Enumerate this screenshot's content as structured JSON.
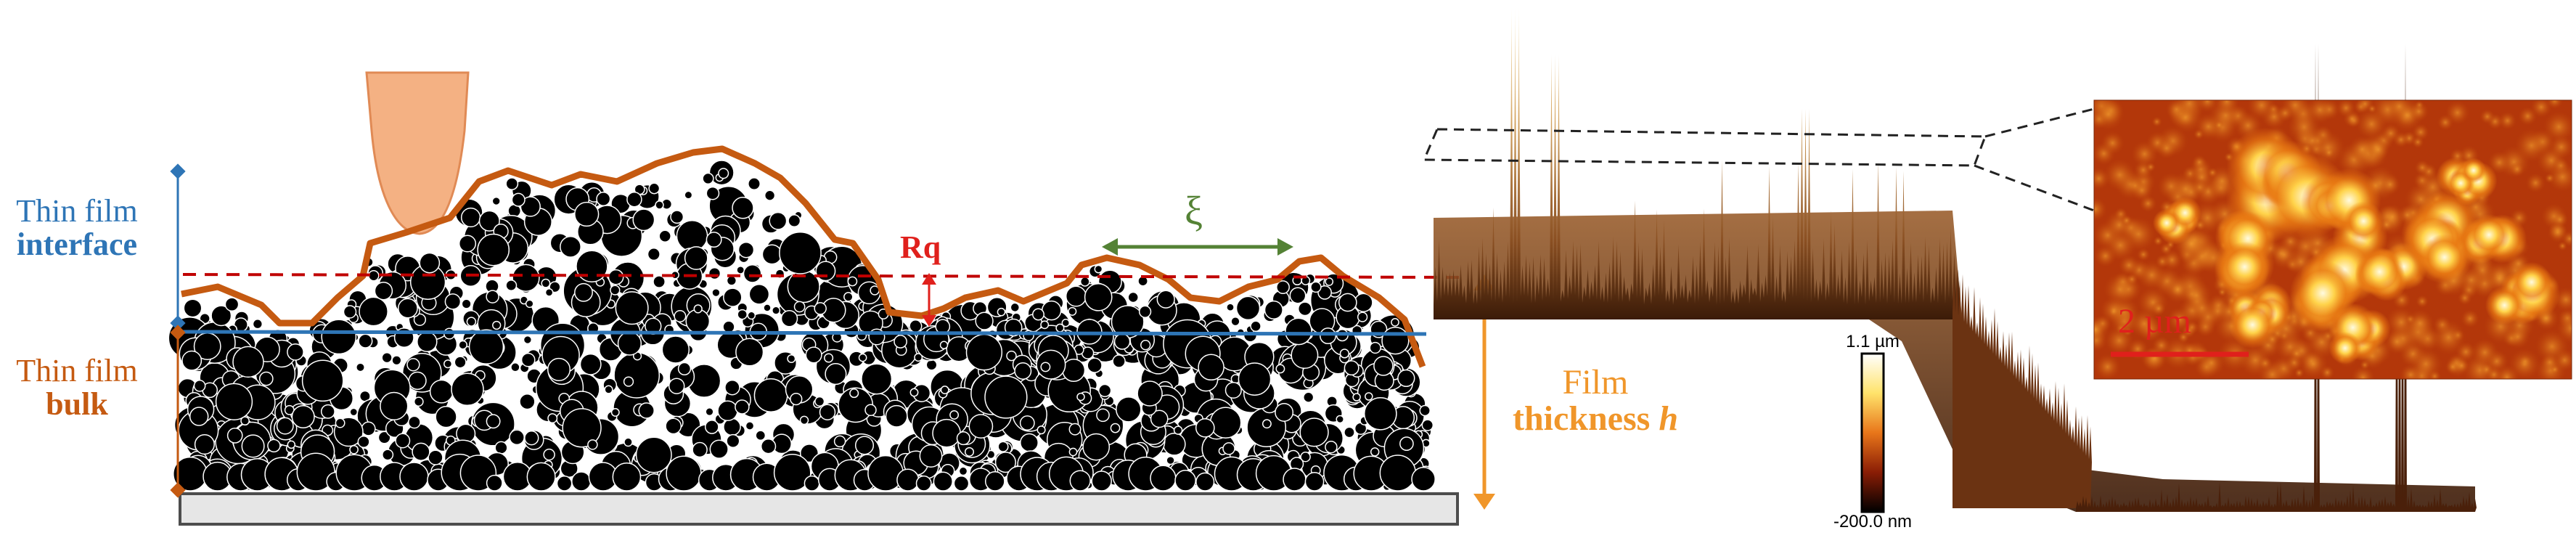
{
  "labels": {
    "interface_line1": "Thin film",
    "interface_line2": "interface",
    "bulk_line1": "Thin film",
    "bulk_line2": "bulk",
    "roughness": "Rq",
    "correlation_length": "ξ",
    "thickness_line1": "Film",
    "thickness_line2_bold": "thickness ",
    "thickness_symbol": "h",
    "scalebar_max": "1.1 µm",
    "scalebar_min": "-200.0 nm",
    "afm_scale": "2 µm"
  },
  "colors": {
    "interface_blue": "#2e75b6",
    "bulk_orange": "#c55a11",
    "thickness_amber": "#f0962a",
    "roughness_red": "#c00000",
    "correlation_green": "#548235",
    "tip_fill": "#f4b183",
    "substrate_fill": "#e6e6e6",
    "particles": "#000000"
  },
  "icons": {
    "afm_tip": "afm-tip-icon",
    "afm_image": "afm-height-map",
    "surface_3d": "3d-topography-plot"
  }
}
